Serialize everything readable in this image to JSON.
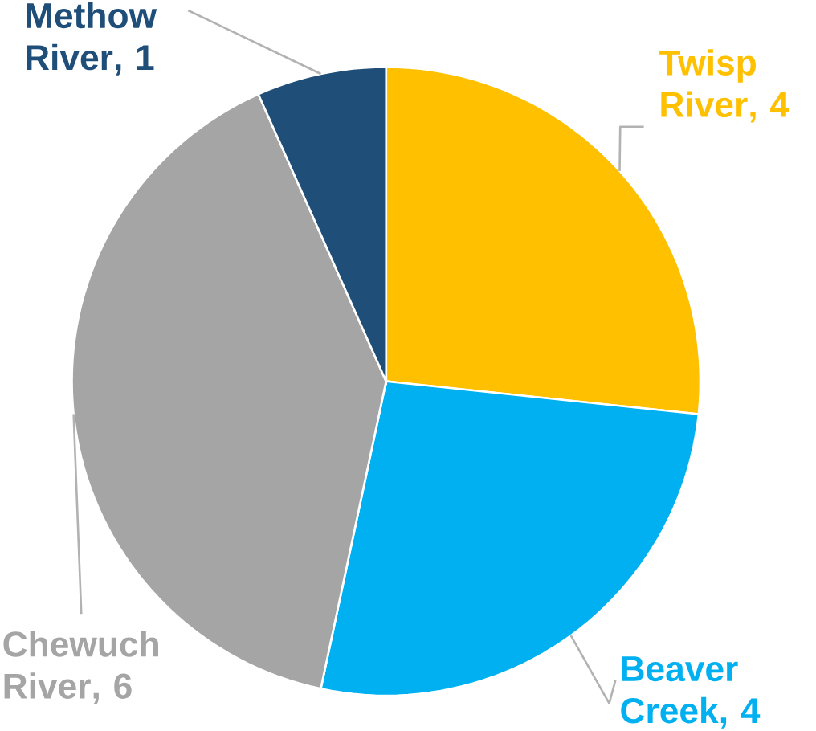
{
  "chart_data": {
    "type": "pie",
    "categories": [
      "Twisp River",
      "Beaver Creek",
      "Chewuch River",
      "Methow River"
    ],
    "values": [
      4,
      4,
      6,
      1
    ],
    "colors": [
      "#ffc000",
      "#00b0f0",
      "#a5a5a5",
      "#1f4e79"
    ],
    "value_labels": [
      ", 4",
      ", 4",
      ", 6",
      ", 1"
    ]
  }
}
